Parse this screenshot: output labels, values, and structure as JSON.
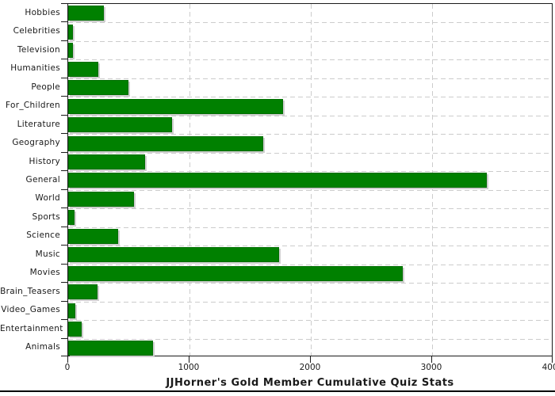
{
  "chart_data": {
    "type": "bar",
    "orientation": "horizontal",
    "title": "JJHorner's Gold Member Cumulative Quiz Stats",
    "categories": [
      "Hobbies",
      "Celebrities",
      "Television",
      "Humanities",
      "People",
      "For_Children",
      "Literature",
      "Geography",
      "History",
      "General",
      "World",
      "Sports",
      "Science",
      "Music",
      "Movies",
      "Brain_Teasers",
      "Video_Games",
      "Entertainment",
      "Animals"
    ],
    "values": [
      295,
      40,
      40,
      250,
      495,
      1770,
      855,
      1610,
      635,
      3450,
      540,
      55,
      415,
      1740,
      2760,
      245,
      60,
      110,
      700
    ],
    "xlim": [
      0,
      4000
    ],
    "x_ticks": [
      0,
      1000,
      2000,
      3000,
      4000
    ],
    "xlabel": "",
    "ylabel": "",
    "grid": "dashed-both-axes",
    "legend": "none",
    "colors": {
      "bar_fill": "#008000",
      "bar_edge": "#006e00",
      "bar_shadow": "#cfcfcf",
      "gridline": "#cccccc",
      "axis_frame": "#1a1a1a",
      "text": "#1a1a1a",
      "background": "#ffffff"
    }
  }
}
